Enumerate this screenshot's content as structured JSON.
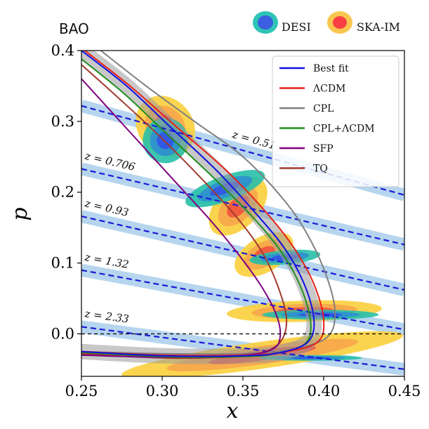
{
  "chart_data": {
    "type": "line",
    "title": "BAO",
    "xlabel": "x",
    "ylabel": "p",
    "xlim": [
      0.25,
      0.45
    ],
    "ylim": [
      -0.06,
      0.4
    ],
    "xticks": [
      0.25,
      0.3,
      0.35,
      0.4,
      0.45
    ],
    "yticks": [
      0.0,
      0.1,
      0.2,
      0.3,
      0.4
    ],
    "xtick_labels": [
      "0.25",
      "0.30",
      "0.35",
      "0.40",
      "0.45"
    ],
    "ytick_labels": [
      "0.0",
      "0.1",
      "0.2",
      "0.3",
      "0.4"
    ],
    "colors": {
      "best_fit": "#1010e0",
      "lcdm": "#e8201a",
      "cpl": "#7f7f7f",
      "cpl_lcdm": "#1f8f1f",
      "sfp": "#800080",
      "tq": "#a23a2e",
      "band": "#9ec7ea",
      "dashed": "#1a1ad8"
    },
    "top_legend": [
      {
        "label": "DESI",
        "outer": "#2ec4b6",
        "inner": "#3b5fe0"
      },
      {
        "label": "SKA-IM",
        "outer": "#f9c74f",
        "inner": "#f94144"
      }
    ],
    "legend": [
      {
        "label": "Best fit",
        "color": "#1010e0"
      },
      {
        "label": "ΛCDM",
        "color": "#e8201a"
      },
      {
        "label": "CPL",
        "color": "#7f7f7f"
      },
      {
        "label": "CPL+ΛCDM",
        "color": "#1f8f1f"
      },
      {
        "label": "SFP",
        "color": "#800080"
      },
      {
        "label": "TQ",
        "color": "#a23a2e"
      }
    ],
    "redshift_lines": [
      {
        "z": 0.51,
        "label": "z = 0.51",
        "x": [
          0.25,
          0.45
        ],
        "p": [
          0.322,
          0.196
        ]
      },
      {
        "z": 0.706,
        "label": "z = 0.706",
        "x": [
          0.25,
          0.45
        ],
        "p": [
          0.233,
          0.126
        ]
      },
      {
        "z": 0.93,
        "label": "z = 0.93",
        "x": [
          0.25,
          0.45
        ],
        "p": [
          0.166,
          0.062
        ]
      },
      {
        "z": 1.32,
        "label": "z = 1.32",
        "x": [
          0.25,
          0.45
        ],
        "p": [
          0.09,
          0.006
        ]
      },
      {
        "z": 2.33,
        "label": "z = 2.33",
        "x": [
          0.25,
          0.45
        ],
        "p": [
          0.01,
          -0.05
        ]
      }
    ],
    "series": [
      {
        "name": "CPL",
        "x": [
          0.262,
          0.29,
          0.32,
          0.35,
          0.375,
          0.39,
          0.402,
          0.407,
          0.402,
          0.38,
          0.35,
          0.3,
          0.25
        ],
        "p": [
          0.4,
          0.35,
          0.3,
          0.25,
          0.19,
          0.14,
          0.08,
          0.03,
          -0.005,
          -0.022,
          -0.028,
          -0.028,
          -0.025
        ]
      },
      {
        "name": "ΛCDM",
        "x": [
          0.252,
          0.28,
          0.31,
          0.34,
          0.365,
          0.382,
          0.394,
          0.4,
          0.396,
          0.375,
          0.35,
          0.3,
          0.25
        ],
        "p": [
          0.4,
          0.35,
          0.29,
          0.23,
          0.17,
          0.12,
          0.07,
          0.02,
          -0.012,
          -0.026,
          -0.03,
          -0.03,
          -0.025
        ]
      },
      {
        "name": "Best fit",
        "x": [
          0.25,
          0.278,
          0.306,
          0.334,
          0.358,
          0.376,
          0.388,
          0.394,
          0.39,
          0.372,
          0.35,
          0.3,
          0.25
        ],
        "p": [
          0.4,
          0.35,
          0.29,
          0.23,
          0.17,
          0.12,
          0.07,
          0.02,
          -0.012,
          -0.027,
          -0.031,
          -0.031,
          -0.025
        ]
      },
      {
        "name": "CPL+ΛCDM",
        "x": [
          0.25,
          0.276,
          0.304,
          0.332,
          0.356,
          0.374,
          0.386,
          0.392,
          0.388,
          0.37,
          0.35,
          0.3,
          0.25
        ],
        "p": [
          0.388,
          0.34,
          0.28,
          0.22,
          0.165,
          0.115,
          0.065,
          0.015,
          -0.015,
          -0.028,
          -0.032,
          -0.032,
          -0.026
        ]
      },
      {
        "name": "TQ",
        "x": [
          0.25,
          0.272,
          0.298,
          0.324,
          0.346,
          0.362,
          0.372,
          0.377,
          0.373,
          0.36,
          0.34,
          0.3,
          0.25
        ],
        "p": [
          0.38,
          0.335,
          0.28,
          0.22,
          0.165,
          0.115,
          0.065,
          0.02,
          -0.012,
          -0.028,
          -0.033,
          -0.034,
          -0.028
        ]
      },
      {
        "name": "SFP",
        "x": [
          0.25,
          0.27,
          0.29,
          0.31,
          0.33,
          0.348,
          0.362,
          0.371,
          0.373,
          0.368,
          0.35,
          0.3,
          0.25
        ],
        "p": [
          0.36,
          0.31,
          0.26,
          0.21,
          0.16,
          0.11,
          0.065,
          0.025,
          -0.005,
          -0.022,
          -0.03,
          -0.033,
          -0.03
        ]
      }
    ],
    "desi_ellipses": [
      {
        "x": 0.302,
        "p": 0.273,
        "rx": 0.014,
        "ry": 0.032,
        "angle": -35
      },
      {
        "x": 0.339,
        "p": 0.205,
        "rx": 0.026,
        "ry": 0.018,
        "angle": -20
      },
      {
        "x": 0.376,
        "p": 0.108,
        "rx": 0.022,
        "ry": 0.01,
        "angle": -5
      },
      {
        "x": 0.398,
        "p": 0.027,
        "rx": 0.036,
        "ry": 0.007,
        "angle": 0
      },
      {
        "x": 0.392,
        "p": -0.034,
        "rx": 0.032,
        "ry": 0.004,
        "angle": 0
      }
    ],
    "ska_ellipses": [
      {
        "x": 0.302,
        "p": 0.293,
        "rx": 0.017,
        "ry": 0.046,
        "angle": -40
      },
      {
        "x": 0.347,
        "p": 0.18,
        "rx": 0.022,
        "ry": 0.03,
        "angle": -45
      },
      {
        "x": 0.363,
        "p": 0.112,
        "rx": 0.02,
        "ry": 0.025,
        "angle": -30
      },
      {
        "x": 0.388,
        "p": 0.032,
        "rx": 0.048,
        "ry": 0.015,
        "angle": -2
      },
      {
        "x": 0.362,
        "p": -0.03,
        "rx": 0.088,
        "ry": 0.019,
        "angle": -8
      }
    ],
    "zero_line": 0.0
  }
}
